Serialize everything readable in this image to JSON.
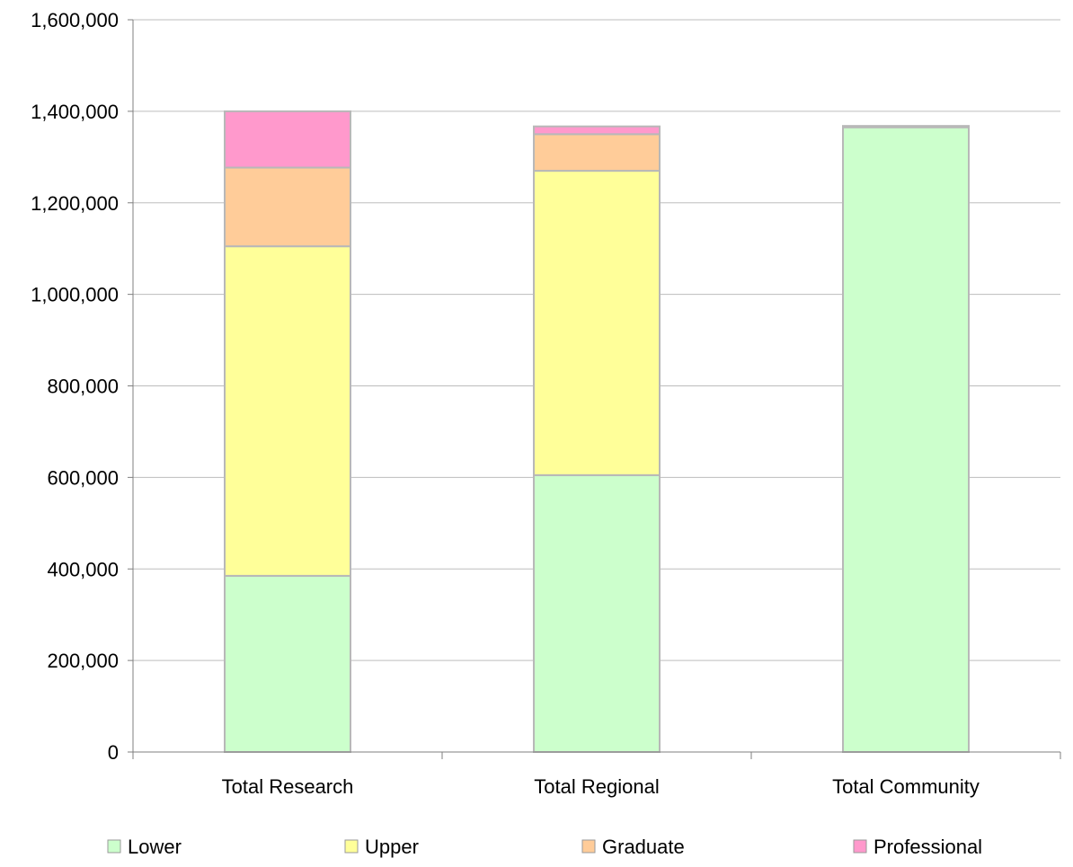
{
  "chart_data": {
    "type": "bar",
    "stacked": true,
    "title": "",
    "xlabel": "",
    "ylabel": "",
    "categories": [
      "Total Research",
      "Total Regional",
      "Total Community"
    ],
    "series": [
      {
        "name": "Lower",
        "values": [
          385000,
          605000,
          1365000
        ],
        "color": "#ccffcc"
      },
      {
        "name": "Upper",
        "values": [
          720000,
          665000,
          0
        ],
        "color": "#ffff99"
      },
      {
        "name": "Graduate",
        "values": [
          172000,
          80000,
          0
        ],
        "color": "#ffcc99"
      },
      {
        "name": "Professional",
        "values": [
          123000,
          17000,
          3000
        ],
        "color": "#ff99cc"
      }
    ],
    "ylim": [
      0,
      1600000
    ],
    "yticks": [
      "0",
      "200,000",
      "400,000",
      "600,000",
      "800,000",
      "1,000,000",
      "1,200,000",
      "1,400,000",
      "1,600,000"
    ],
    "grid": true,
    "legend_position": "bottom"
  }
}
